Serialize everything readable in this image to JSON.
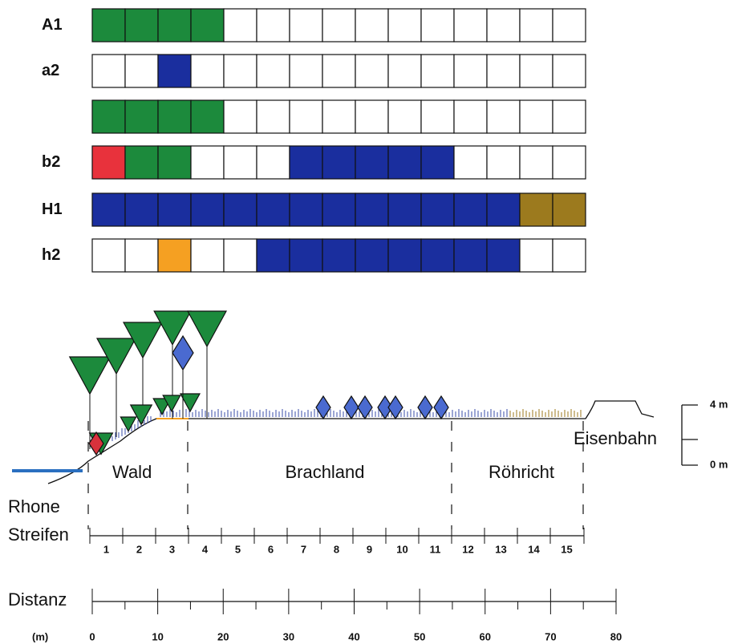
{
  "grid": {
    "rows": [
      {
        "label": "A1",
        "cells": [
          "#1c8a3c",
          "#1c8a3c",
          "#1c8a3c",
          "#1c8a3c",
          "#fff",
          "#fff",
          "#fff",
          "#fff",
          "#fff",
          "#fff",
          "#fff",
          "#fff",
          "#fff",
          "#fff",
          "#fff"
        ]
      },
      {
        "label": "a2",
        "cells": [
          "#fff",
          "#fff",
          "#1a2e9e",
          "#fff",
          "#fff",
          "#fff",
          "#fff",
          "#fff",
          "#fff",
          "#fff",
          "#fff",
          "#fff",
          "#fff",
          "#fff",
          "#fff"
        ]
      },
      {
        "cells": [
          "#1c8a3c",
          "#1c8a3c",
          "#1c8a3c",
          "#1c8a3c",
          "#fff",
          "#fff",
          "#fff",
          "#fff",
          "#fff",
          "#fff",
          "#fff",
          "#fff",
          "#fff",
          "#fff",
          "#fff"
        ]
      },
      {
        "label": "b2",
        "cells": [
          "#e8323c",
          "#1c8a3c",
          "#1c8a3c",
          "#fff",
          "#fff",
          "#fff",
          "#1a2e9e",
          "#1a2e9e",
          "#1a2e9e",
          "#1a2e9e",
          "#1a2e9e",
          "#fff",
          "#fff",
          "#fff",
          "#fff"
        ]
      },
      {
        "label": "H1",
        "cells": [
          "#1a2e9e",
          "#1a2e9e",
          "#1a2e9e",
          "#1a2e9e",
          "#1a2e9e",
          "#1a2e9e",
          "#1a2e9e",
          "#1a2e9e",
          "#1a2e9e",
          "#1a2e9e",
          "#1a2e9e",
          "#1a2e9e",
          "#1a2e9e",
          "#9c7a1e",
          "#9c7a1e"
        ]
      },
      {
        "label": "h2",
        "cells": [
          "#fff",
          "#fff",
          "#f5a022",
          "#fff",
          "#fff",
          "#1a2e9e",
          "#1a2e9e",
          "#1a2e9e",
          "#1a2e9e",
          "#1a2e9e",
          "#1a2e9e",
          "#1a2e9e",
          "#1a2e9e",
          "#fff",
          "#fff"
        ]
      }
    ]
  },
  "profile": {
    "zones": [
      "Wald",
      "Brachland",
      "Röhricht"
    ],
    "river": "Rhone",
    "railway": "Eisenbahn",
    "scale": {
      "top": "4 m",
      "bottom": "0 m"
    }
  },
  "strips": {
    "label": "Streifen",
    "numbers": [
      1,
      2,
      3,
      4,
      5,
      6,
      7,
      8,
      9,
      10,
      11,
      12,
      13,
      14,
      15
    ]
  },
  "distance": {
    "label": "Distanz",
    "unit": "(m)",
    "ticks": [
      0,
      10,
      20,
      30,
      40,
      50,
      60,
      70,
      80
    ]
  }
}
